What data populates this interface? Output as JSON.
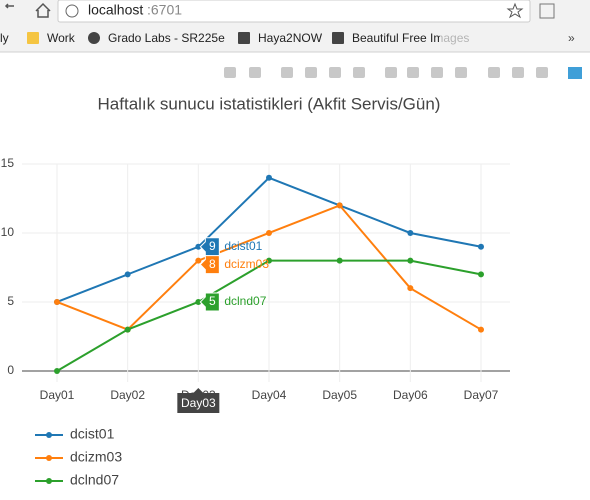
{
  "browser": {
    "url_host": "localhost",
    "url_port": ":6701",
    "bookmarks": [
      "ly",
      "Work",
      "Grado Labs - SR225e",
      "Haya2NOW",
      "Beautiful Free Images"
    ],
    "more": "»"
  },
  "chart_data": {
    "type": "line",
    "title": "Haftalık sunucu istatistikleri (Akfit Servis/Gün)",
    "categories": [
      "Day01",
      "Day02",
      "Day03",
      "Day04",
      "Day05",
      "Day06",
      "Day07"
    ],
    "series": [
      {
        "name": "dcist01",
        "color": "#1f77b4",
        "values": [
          5,
          7,
          9,
          14,
          12,
          10,
          9
        ]
      },
      {
        "name": "dcizm03",
        "color": "#ff7f0e",
        "values": [
          5,
          3,
          8,
          10,
          12,
          6,
          3
        ]
      },
      {
        "name": "dclnd07",
        "color": "#2ca02c",
        "values": [
          0,
          3,
          5,
          8,
          8,
          8,
          7
        ]
      }
    ],
    "ylim": [
      -0.8,
      15
    ],
    "yticks": [
      0,
      5,
      10,
      15
    ],
    "grid": true,
    "legend": "bottom-left",
    "hover_index": 2
  }
}
